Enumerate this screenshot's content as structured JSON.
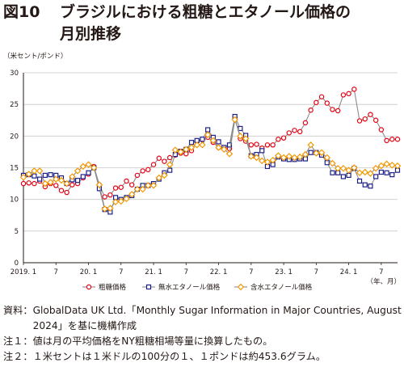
{
  "title": {
    "number": "図10",
    "line1": "ブラジルにおける粗糖とエタノール価格の",
    "line2": "月別推移"
  },
  "unit_label": "（米セント/ポンド）",
  "notes": [
    {
      "label": "資料：",
      "text": "GlobalData UK Ltd.「Monthly Sugar Information in Major Countries, August 2024」を基に機構作成"
    },
    {
      "label": "注１：",
      "text": "値は月の平均価格をNY粗糖相場等量に換算したもの。"
    },
    {
      "label": "注２：",
      "text": "１米セントは１米ドルの100分の１、１ポンドは約453.6グラム。"
    }
  ],
  "colors": {
    "sugar": "#e60012",
    "anhydrous": "#1d2088",
    "hydrous": "#f39800",
    "line": "#8c8c8c"
  },
  "chart_data": {
    "type": "line",
    "ylim": [
      0,
      30
    ],
    "yticks": [
      "0",
      "5",
      "10",
      "15",
      "20",
      "25",
      "30"
    ],
    "xtick_labels": [
      {
        "index": 0,
        "label": "2019. 1"
      },
      {
        "index": 6,
        "label": "7"
      },
      {
        "index": 12,
        "label": "20. 1"
      },
      {
        "index": 18,
        "label": "7"
      },
      {
        "index": 24,
        "label": "21. 1"
      },
      {
        "index": 30,
        "label": "7"
      },
      {
        "index": 36,
        "label": "22. 1"
      },
      {
        "index": 42,
        "label": "7"
      },
      {
        "index": 48,
        "label": "23. 1"
      },
      {
        "index": 54,
        "label": "7"
      },
      {
        "index": 60,
        "label": "24. 1"
      },
      {
        "index": 66,
        "label": "7"
      }
    ],
    "x_unit": "（年、月）",
    "grid": "horizontal",
    "legend_position": "bottom",
    "series": [
      {
        "name": "粗糖価格",
        "marker": "circle",
        "color": "#e60012",
        "values": [
          12.5,
          12.6,
          12.5,
          12.9,
          12.0,
          12.5,
          12.2,
          11.4,
          11.1,
          12.3,
          12.5,
          13.4,
          14.0,
          15.2,
          12.3,
          10.4,
          10.7,
          11.8,
          11.9,
          12.9,
          12.3,
          13.8,
          14.5,
          14.7,
          15.5,
          16.5,
          16.0,
          16.6,
          17.0,
          17.3,
          17.2,
          17.7,
          19.2,
          19.4,
          19.8,
          19.0,
          18.2,
          18.0,
          18.0,
          23.0,
          19.6,
          19.2,
          18.6,
          18.7,
          18.1,
          18.6,
          18.6,
          19.5,
          19.7,
          20.5,
          20.9,
          20.7,
          22.1,
          24.1,
          25.3,
          26.2,
          25.2,
          24.2,
          24.0,
          26.5,
          26.7,
          27.4,
          22.4,
          22.7,
          23.4,
          22.5,
          21.0,
          19.3,
          19.5,
          19.5
        ]
      },
      {
        "name": "無水エタノール価格",
        "marker": "square",
        "color": "#1d2088",
        "values": [
          13.8,
          13.9,
          13.7,
          13.2,
          13.8,
          13.9,
          13.8,
          13.4,
          12.5,
          13.1,
          13.0,
          13.6,
          14.2,
          15.0,
          11.7,
          8.4,
          8.0,
          10.3,
          10.0,
          10.3,
          10.6,
          11.6,
          12.2,
          12.2,
          12.5,
          13.2,
          14.2,
          14.6,
          17.1,
          17.6,
          17.9,
          19.0,
          19.3,
          19.5,
          21.0,
          19.8,
          19.1,
          18.2,
          18.6,
          23.1,
          21.2,
          20.1,
          16.9,
          17.1,
          17.7,
          15.2,
          15.5,
          16.7,
          16.4,
          16.3,
          16.3,
          16.4,
          16.4,
          17.4,
          17.4,
          17.0,
          15.8,
          14.2,
          14.2,
          13.6,
          13.8,
          14.9,
          12.9,
          12.3,
          12.1,
          13.6,
          14.3,
          14.2,
          13.9,
          14.6
        ]
      },
      {
        "name": "含水エタノール価格",
        "marker": "diamond",
        "color": "#f39800",
        "values": [
          13.5,
          14.0,
          14.5,
          14.5,
          12.5,
          12.7,
          13.2,
          13.0,
          12.5,
          13.6,
          14.5,
          15.2,
          15.5,
          15.0,
          12.3,
          8.5,
          8.6,
          9.6,
          9.7,
          10.1,
          10.8,
          11.6,
          11.6,
          12.2,
          12.2,
          13.4,
          13.8,
          15.5,
          17.8,
          17.5,
          17.9,
          18.2,
          18.6,
          18.6,
          20.2,
          19.3,
          18.2,
          17.9,
          17.2,
          22.6,
          20.0,
          19.6,
          16.8,
          16.6,
          16.1,
          15.9,
          16.2,
          16.9,
          16.6,
          16.8,
          16.6,
          16.7,
          17.1,
          18.6,
          17.3,
          17.4,
          16.6,
          15.7,
          14.9,
          14.9,
          14.6,
          15.0,
          14.2,
          14.3,
          14.1,
          14.9,
          15.3,
          15.6,
          15.4,
          15.3
        ]
      }
    ]
  }
}
